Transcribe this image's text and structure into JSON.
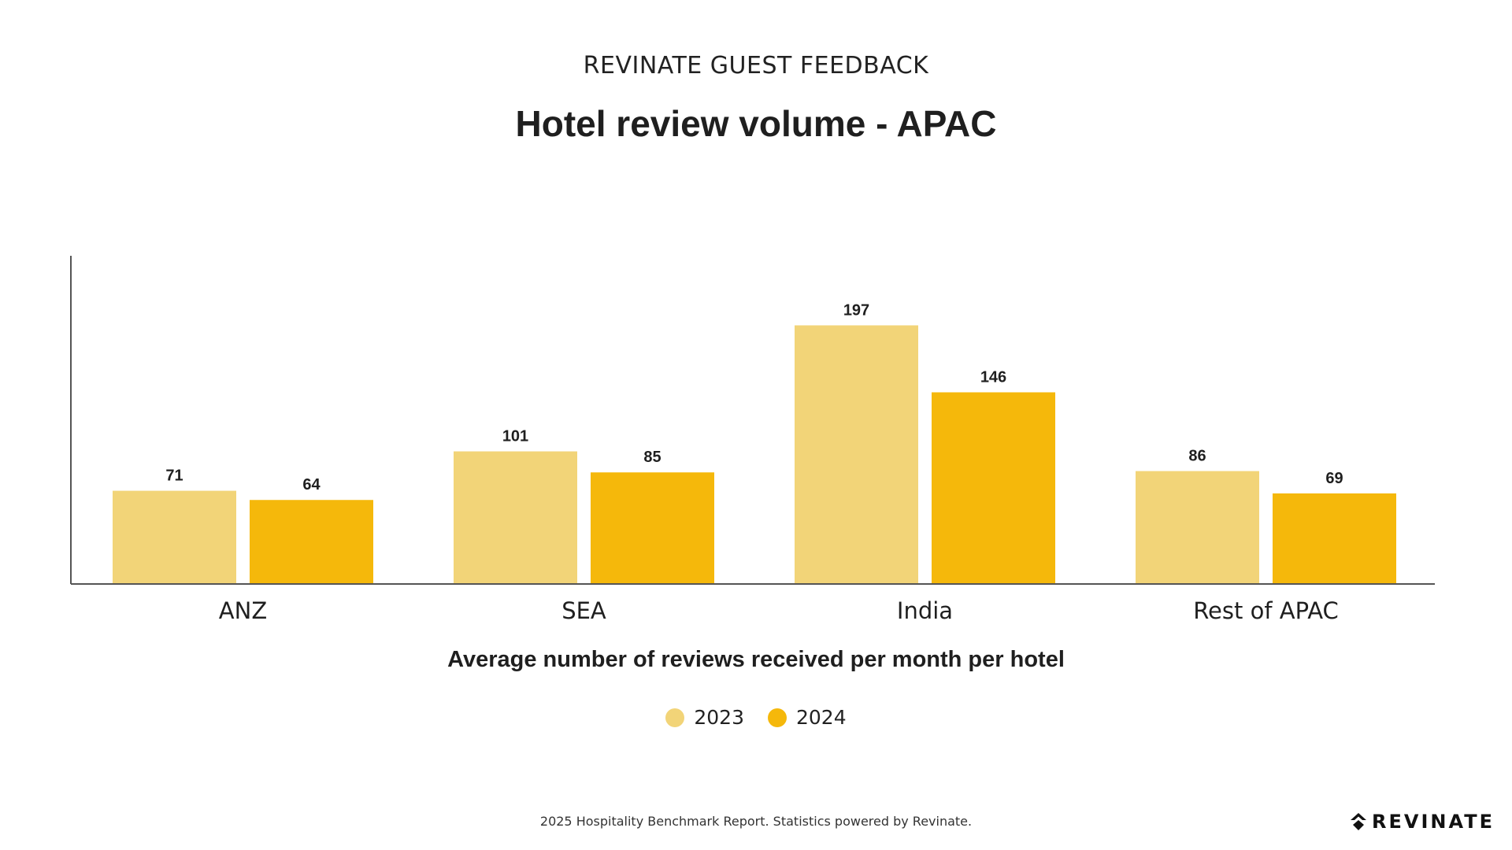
{
  "header": {
    "subtitle": "REVINATE GUEST FEEDBACK",
    "title": "Hotel review volume - APAC"
  },
  "chart_data": {
    "type": "bar",
    "title": "Hotel review volume - APAC",
    "subtitle": "REVINATE GUEST FEEDBACK",
    "xlabel": "Average number of reviews received per month per hotel",
    "ylabel": "",
    "categories": [
      "ANZ",
      "SEA",
      "India",
      "Rest of APAC"
    ],
    "series": [
      {
        "name": "2023",
        "values": [
          71,
          101,
          197,
          86
        ],
        "color": "#F2D478"
      },
      {
        "name": "2024",
        "values": [
          64,
          85,
          146,
          69
        ],
        "color": "#F5B80B"
      }
    ],
    "ylim": [
      0,
      250
    ],
    "grid": false,
    "legend": "bottom-center",
    "data_labels": true
  },
  "footer": {
    "text": "2025 Hospitality Benchmark Report. Statistics powered by Revinate."
  },
  "brand": {
    "name": "REVINATE",
    "icon": "revinate-logo-icon"
  },
  "colors": {
    "axis": "#555555",
    "text": "#1f1f1f"
  }
}
